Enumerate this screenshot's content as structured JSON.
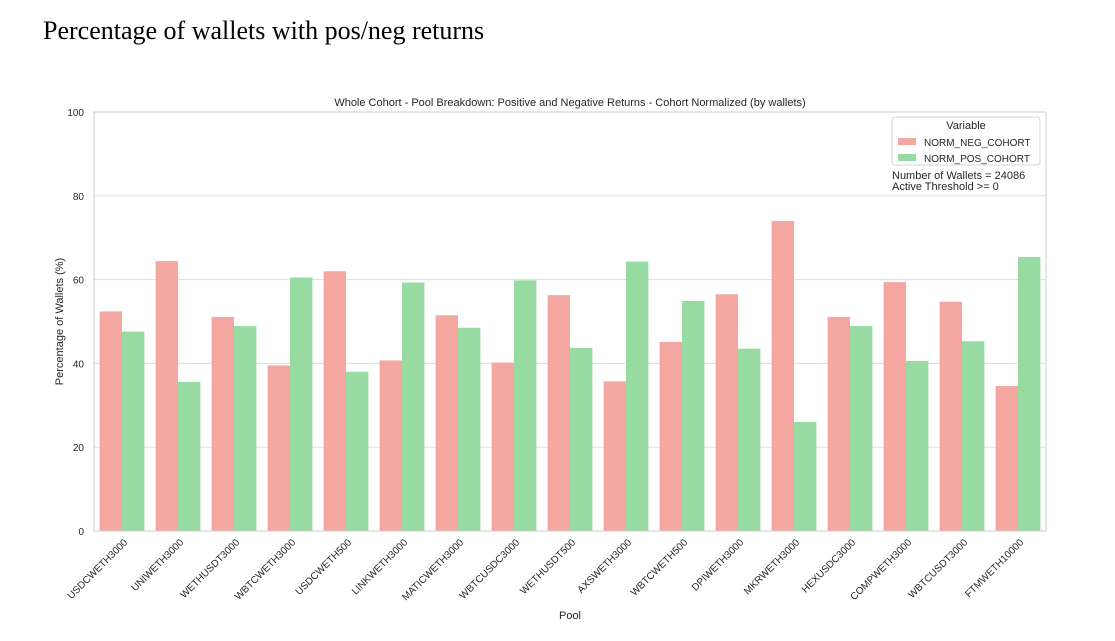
{
  "page": {
    "heading": "Percentage of wallets with pos/neg returns"
  },
  "chart_data": {
    "type": "bar",
    "title": "Whole Cohort - Pool Breakdown: Positive and Negative Returns - Cohort Normalized (by wallets)",
    "xlabel": "Pool",
    "ylabel": "Percentage of Wallets (%)",
    "ylim": [
      0,
      100
    ],
    "yticks": [
      0,
      20,
      40,
      60,
      80,
      100
    ],
    "grid": true,
    "legend_position": "top-right",
    "legend_title": "Variable",
    "categories": [
      "USDCWETH3000",
      "UNIWETH3000",
      "WETHUSDT3000",
      "WBTCWETH3000",
      "USDCWETH500",
      "LINKWETH3000",
      "MATICWETH3000",
      "WBTCUSDC3000",
      "WETHUSDT500",
      "AXSWETH3000",
      "WBTCWETH500",
      "DPIWETH3000",
      "MKRWETH3000",
      "HEXUSDC3000",
      "COMPWETH3000",
      "WBTCUSDT3000",
      "FTMWETH10000"
    ],
    "series": [
      {
        "name": "NORM_NEG_COHORT",
        "color": "#f4a6a1",
        "values": [
          52.4,
          64.4,
          51.1,
          39.5,
          62.0,
          40.7,
          51.5,
          40.2,
          56.3,
          35.7,
          45.1,
          56.5,
          74.0,
          51.1,
          59.4,
          54.7,
          34.6
        ]
      },
      {
        "name": "NORM_POS_COHORT",
        "color": "#97dba3",
        "values": [
          47.6,
          35.6,
          48.9,
          60.5,
          38.0,
          59.3,
          48.5,
          59.8,
          43.7,
          64.3,
          54.9,
          43.5,
          26.0,
          48.9,
          40.6,
          45.3,
          65.4
        ]
      }
    ],
    "annotations": [
      "Number of Wallets = 24086",
      "Active Threshold >= 0"
    ]
  }
}
